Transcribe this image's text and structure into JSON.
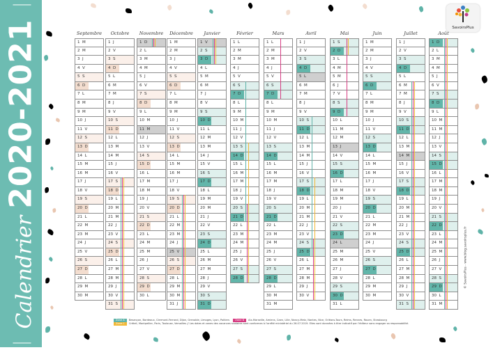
{
  "title": {
    "label": "Calendrier",
    "years": "2020-2021"
  },
  "year_badges": [
    {
      "label": "2020",
      "color": "#e9c6b0"
    },
    {
      "label": "2021",
      "color": "#5fb3a8"
    }
  ],
  "colors": {
    "band": "#6dbcb2",
    "sunday_2020": "#f3ddcf",
    "saturday_2020": "#fbf0ea",
    "sunday_2021": "#62b6aa",
    "saturday_2021": "#dff0ed",
    "holiday": "#cfcfcf"
  },
  "months": [
    {
      "name": "Septembre",
      "year": 2020,
      "days": "MMJVSDLMMJVSDLMMJVSDLMMJVSDLMM"
    },
    {
      "name": "Octobre",
      "year": 2020,
      "days": "JVSDLMMJVSDLMMJVSDLMMJVSDLMMJVS"
    },
    {
      "name": "Novembre",
      "year": 2020,
      "days": "DLMMJVSDLMMJVSDLMMJVSDLMMJVSDL"
    },
    {
      "name": "Décembre",
      "year": 2020,
      "days": "MMJVSDLMMJVSDLMMJVSDLMMJVSDLMMJ"
    },
    {
      "name": "Janvier",
      "year": 2021,
      "days": "VSDLMMJVSDLMMJVSDLMMJVSDLMMJVSD"
    },
    {
      "name": "Février",
      "year": 2021,
      "days": "LMMJVSDLMMJVSDLMMJVSDLMMJVSD"
    },
    {
      "name": "Mars",
      "year": 2021,
      "days": "LMMJVSDLMMJVSDLMMJVSDLMMJVSDLMM"
    },
    {
      "name": "Avril",
      "year": 2021,
      "days": "JVSDLMMJVSDLMMJVSDLMMJVSDLMMJV"
    },
    {
      "name": "Mai",
      "year": 2021,
      "days": "SDLMMJVSDLMMJVSDLMMJVSDLMMJVSDL"
    },
    {
      "name": "Juin",
      "year": 2021,
      "days": "MMJVSDLMMJVSDLMMJVSDLMMJVSDLMM"
    },
    {
      "name": "Juillet",
      "year": 2021,
      "days": "JVSDLMMJVSDLMMJVSDLMMJVSDLMMJVS"
    },
    {
      "name": "Août",
      "year": 2021,
      "days": "DLMMJVSDLMMJVSDLMMJVSDLMMJVSDLM"
    }
  ],
  "holidays": [
    [
      2,
      1
    ],
    [
      2,
      11
    ],
    [
      3,
      25
    ],
    [
      4,
      1
    ],
    [
      7,
      5
    ],
    [
      8,
      13
    ],
    [
      8,
      24
    ],
    [
      10,
      14
    ]
  ],
  "zones": [
    {
      "label": "Zone A",
      "color": "#5fb3a8",
      "cities": "Besançon, Bordeaux, Clermont-Ferrand, Dijon, Grenoble, Limoges, Lyon, Poitiers",
      "vacations": [
        [
          1,
          17,
          2,
          1
        ],
        [
          3,
          19,
          4,
          3
        ],
        [
          5,
          6,
          5,
          21
        ],
        [
          7,
          10,
          7,
          25
        ],
        [
          10,
          6,
          11,
          31
        ]
      ]
    },
    {
      "label": "Zone B",
      "color": "#d63c82",
      "cities": "Aix-Marseille, Amiens, Caen, Lille, Nancy-Metz, Nantes, Nice, Orléans-Tours, Reims, Rennes, Rouen, Strasbourg",
      "vacations": [
        [
          1,
          17,
          2,
          1
        ],
        [
          3,
          19,
          4,
          3
        ],
        [
          5,
          20,
          6,
          7
        ],
        [
          7,
          24,
          8,
          9
        ],
        [
          10,
          6,
          11,
          31
        ]
      ]
    },
    {
      "label": "Zone C",
      "color": "#f1b836",
      "cities": "Créteil, Montpellier, Paris, Toulouse, Versailles",
      "vacations": [
        [
          1,
          17,
          2,
          1
        ],
        [
          3,
          19,
          4,
          3
        ],
        [
          5,
          13,
          5,
          28
        ],
        [
          7,
          17,
          8,
          2
        ],
        [
          10,
          6,
          11,
          31
        ]
      ]
    }
  ],
  "legend_note": "// Les dates et zones des vacances scolaires sont conformes à l'arrêté ministériel du 26.07.2019. Elles sont données à titre indicatif par l'éditeur sans engager sa responsabilité.",
  "logo": {
    "text": "SavoirsPlus"
  },
  "credit": "© SavoirsPlus - www.blog.savoirsplus.fr"
}
